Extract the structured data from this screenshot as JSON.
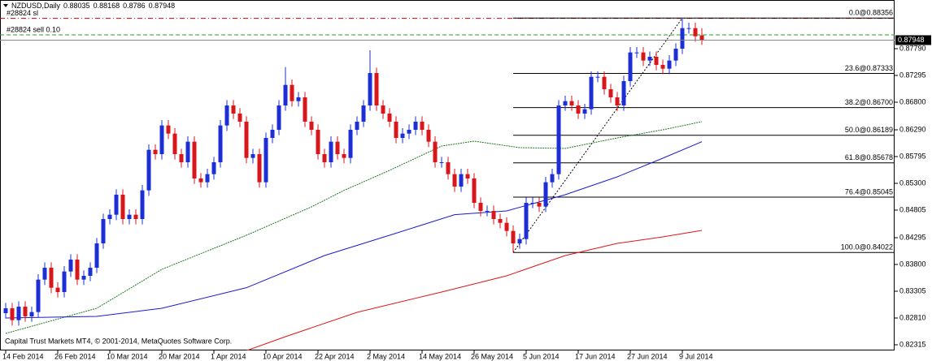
{
  "chart_data": {
    "type": "candlestick",
    "symbol": "NZDUSD,Daily",
    "copyright": "Capital Trust Markets MT4, © 2001-2014, MetaQuotes Software Corp.",
    "bull_color": "#1c2fd6",
    "bear_color": "#d8161c",
    "ylim": [
      0.8221,
      0.8869
    ],
    "yticks": [
      {
        "value": 0.8779,
        "label": "0.87790"
      },
      0.87295,
      {
        "value": 0.868,
        "label": "0.86800"
      },
      {
        "value": 0.8629,
        "label": "0.86290"
      },
      0.85795,
      {
        "value": 0.853,
        "label": "0.85300"
      },
      0.84805,
      0.84295,
      {
        "value": 0.838,
        "label": "0.83800"
      },
      0.83305,
      {
        "value": 0.8281,
        "label": "0.82810"
      },
      0.82315
    ],
    "xticks": [
      {
        "value": 0,
        "label": "14 Feb 2014"
      },
      {
        "value": 8,
        "label": "26 Feb 2014"
      },
      {
        "value": 16,
        "label": "10 Mar 2014"
      },
      {
        "value": 24,
        "label": "20 Mar 2014"
      },
      {
        "value": 32,
        "label": "1 Apr 2014"
      },
      {
        "value": 40,
        "label": "10 Apr 2014"
      },
      {
        "value": 48,
        "label": "22 Apr 2014"
      },
      {
        "value": 56,
        "label": "2 May 2014"
      },
      {
        "value": 64,
        "label": "14 May 2014"
      },
      {
        "value": 72,
        "label": "26 May 2014"
      },
      {
        "value": 80,
        "label": "5 Jun 2014"
      },
      {
        "value": 88,
        "label": "17 Jun 2014"
      },
      {
        "value": 96,
        "label": "27 Jun 2014"
      },
      {
        "value": 104,
        "label": "9 Jul 2014"
      }
    ],
    "open": [
      0.829,
      0.8299,
      0.8277,
      0.8302,
      0.8284,
      0.8292,
      0.8352,
      0.8374,
      0.8337,
      0.8329,
      0.8367,
      0.8389,
      0.8352,
      0.8359,
      0.8374,
      0.8419,
      0.8464,
      0.8472,
      0.8509,
      0.8464,
      0.8472,
      0.8464,
      0.8517,
      0.8592,
      0.8584,
      0.8637,
      0.8622,
      0.8584,
      0.8569,
      0.8607,
      0.8539,
      0.8532,
      0.8547,
      0.8569,
      0.8637,
      0.8674,
      0.8659,
      0.8644,
      0.8577,
      0.8584,
      0.8532,
      0.8614,
      0.8629,
      0.8674,
      0.8712,
      0.8682,
      0.8689,
      0.8644,
      0.8629,
      0.8584,
      0.8569,
      0.8607,
      0.8584,
      0.8577,
      0.8629,
      0.8644,
      0.8674,
      0.8734,
      0.8674,
      0.8659,
      0.8644,
      0.8614,
      0.8622,
      0.8629,
      0.8644,
      0.8629,
      0.8607,
      0.8569,
      0.8569,
      0.8547,
      0.8524,
      0.8547,
      0.8539,
      0.8494,
      0.8479,
      0.8479,
      0.8464,
      0.8457,
      0.8442,
      0.8419,
      0.8427,
      0.8494,
      0.8494,
      0.8487,
      0.8532,
      0.8547,
      0.8674,
      0.8682,
      0.8674,
      0.8659,
      0.8667,
      0.8727,
      0.8727,
      0.8704,
      0.8689,
      0.8674,
      0.8719,
      0.8772,
      0.8772,
      0.8757,
      0.8764,
      0.8749,
      0.8742,
      0.8757,
      0.8779,
      0.8817,
      0.8817,
      0.88035
    ],
    "high": [
      0.8309,
      0.8309,
      0.8312,
      0.8312,
      0.8302,
      0.8362,
      0.8384,
      0.8384,
      0.8347,
      0.8377,
      0.8399,
      0.8399,
      0.8369,
      0.8384,
      0.8429,
      0.8474,
      0.8482,
      0.8519,
      0.8519,
      0.8482,
      0.8482,
      0.8527,
      0.8602,
      0.8602,
      0.8647,
      0.8647,
      0.8632,
      0.8594,
      0.8617,
      0.8617,
      0.8549,
      0.8557,
      0.8579,
      0.8647,
      0.8684,
      0.8684,
      0.8669,
      0.8654,
      0.8594,
      0.8594,
      0.8624,
      0.8639,
      0.8684,
      0.8745,
      0.8722,
      0.8699,
      0.8699,
      0.8654,
      0.8639,
      0.8594,
      0.8617,
      0.8617,
      0.8594,
      0.8639,
      0.8654,
      0.8684,
      0.8776,
      0.8744,
      0.8684,
      0.8669,
      0.8654,
      0.8632,
      0.8639,
      0.8654,
      0.8654,
      0.8639,
      0.8617,
      0.8579,
      0.8579,
      0.8557,
      0.8557,
      0.8557,
      0.8549,
      0.8504,
      0.8489,
      0.8489,
      0.8474,
      0.8467,
      0.8452,
      0.8437,
      0.8504,
      0.8504,
      0.8504,
      0.8542,
      0.8557,
      0.8684,
      0.8692,
      0.8692,
      0.8684,
      0.8677,
      0.8737,
      0.8737,
      0.8737,
      0.8714,
      0.8699,
      0.8729,
      0.8782,
      0.8782,
      0.8782,
      0.8774,
      0.8774,
      0.8759,
      0.8767,
      0.8789,
      0.8836,
      0.8827,
      0.8827,
      0.88168
    ],
    "low": [
      0.828,
      0.8267,
      0.8267,
      0.8274,
      0.8274,
      0.8282,
      0.8342,
      0.8327,
      0.8319,
      0.8319,
      0.8357,
      0.8342,
      0.8342,
      0.8349,
      0.8364,
      0.8409,
      0.8454,
      0.8462,
      0.8454,
      0.8454,
      0.8454,
      0.8454,
      0.8507,
      0.8574,
      0.8574,
      0.8612,
      0.8574,
      0.8559,
      0.8559,
      0.8529,
      0.8522,
      0.8522,
      0.8537,
      0.8559,
      0.8627,
      0.8649,
      0.8634,
      0.8567,
      0.8567,
      0.8522,
      0.8522,
      0.8604,
      0.8619,
      0.8664,
      0.8672,
      0.8672,
      0.8634,
      0.8619,
      0.8574,
      0.8559,
      0.8559,
      0.8574,
      0.8567,
      0.8567,
      0.8619,
      0.8634,
      0.8664,
      0.8664,
      0.8649,
      0.8634,
      0.8604,
      0.8604,
      0.8612,
      0.8619,
      0.8619,
      0.8597,
      0.8559,
      0.8559,
      0.8537,
      0.8514,
      0.8514,
      0.8529,
      0.8484,
      0.8469,
      0.8469,
      0.8454,
      0.8447,
      0.8432,
      0.8402,
      0.8409,
      0.8417,
      0.8484,
      0.8477,
      0.8477,
      0.8522,
      0.8537,
      0.8664,
      0.8664,
      0.8649,
      0.8649,
      0.8657,
      0.8717,
      0.8694,
      0.8679,
      0.8664,
      0.8664,
      0.8709,
      0.8762,
      0.8747,
      0.8747,
      0.8739,
      0.8732,
      0.8732,
      0.8747,
      0.8769,
      0.8807,
      0.8792,
      0.8786
    ],
    "close": [
      0.8299,
      0.8277,
      0.8302,
      0.8284,
      0.8292,
      0.8352,
      0.8374,
      0.8337,
      0.8329,
      0.8367,
      0.8389,
      0.8352,
      0.8359,
      0.8374,
      0.8419,
      0.8464,
      0.8472,
      0.8509,
      0.8464,
      0.8472,
      0.8464,
      0.8517,
      0.8592,
      0.8584,
      0.8637,
      0.8622,
      0.8584,
      0.8569,
      0.8607,
      0.8539,
      0.8532,
      0.8547,
      0.8569,
      0.8637,
      0.8674,
      0.8659,
      0.8644,
      0.8577,
      0.8584,
      0.8532,
      0.8614,
      0.8629,
      0.8674,
      0.8712,
      0.8682,
      0.8689,
      0.8644,
      0.8629,
      0.8584,
      0.8569,
      0.8607,
      0.8584,
      0.8577,
      0.8629,
      0.8644,
      0.8674,
      0.8734,
      0.8674,
      0.8659,
      0.8644,
      0.8614,
      0.8622,
      0.8629,
      0.8644,
      0.8629,
      0.8607,
      0.8569,
      0.8569,
      0.8547,
      0.8524,
      0.8547,
      0.8539,
      0.8494,
      0.8479,
      0.8479,
      0.8464,
      0.8457,
      0.8442,
      0.8419,
      0.8427,
      0.8494,
      0.8494,
      0.8487,
      0.8532,
      0.8547,
      0.8674,
      0.8682,
      0.8674,
      0.8659,
      0.8667,
      0.8727,
      0.8727,
      0.8704,
      0.8689,
      0.8674,
      0.8719,
      0.8772,
      0.8772,
      0.8757,
      0.8764,
      0.8749,
      0.8742,
      0.8757,
      0.8779,
      0.8817,
      0.8817,
      0.8802,
      0.87948
    ],
    "moving_averages": [
      {
        "color": "#1f7a1f",
        "dashed": true,
        "x": [
          0,
          14,
          24,
          37,
          47,
          52,
          59,
          67,
          72,
          79,
          86,
          94,
          101,
          107
        ],
        "values": [
          0.82525,
          0.8299,
          0.8371,
          0.8434,
          0.84865,
          0.8517,
          0.8554,
          0.8599,
          0.8608,
          0.8596,
          0.85945,
          0.8614,
          0.8629,
          0.8644
        ]
      },
      {
        "color": "#1a1ad0",
        "dashed": false,
        "x": [
          0,
          14,
          24,
          37,
          49,
          59,
          69,
          77,
          86,
          94,
          101,
          107
        ],
        "values": [
          0.8281,
          0.8284,
          0.8299,
          0.8337,
          0.83965,
          0.8434,
          0.8472,
          0.8479,
          0.8509,
          0.8542,
          0.85765,
          0.8607
        ]
      },
      {
        "color": "#e01515",
        "dashed": false,
        "x": [
          35,
          43,
          54,
          67,
          77,
          86,
          94,
          101,
          107
        ],
        "values": [
          0.8212,
          0.82465,
          0.82915,
          0.8329,
          0.8359,
          0.83965,
          0.8419,
          0.8431,
          0.8443
        ]
      }
    ],
    "fibonacci": {
      "from_index": 78,
      "to_index": 104,
      "levels": [
        {
          "value": 0.88356,
          "label": "0.0@0.88356"
        },
        {
          "value": 0.87333,
          "label": "23.6@0.87333"
        },
        {
          "value": 0.867,
          "label": "38.2@0.86700"
        },
        {
          "value": 0.86189,
          "label": "50.0@0.86189"
        },
        {
          "value": 0.85678,
          "label": "61.8@0.85678"
        },
        {
          "value": 0.85045,
          "label": "76.4@0.85045"
        },
        {
          "value": 0.84022,
          "label": "100.0@0.84022"
        }
      ]
    },
    "orders": [
      {
        "value": 0.8835,
        "label": "#28824 sl",
        "color": "#d00000"
      },
      {
        "value": 0.88045,
        "label": "#28824 sell 0.10",
        "color": "#22a022"
      }
    ]
  }
}
